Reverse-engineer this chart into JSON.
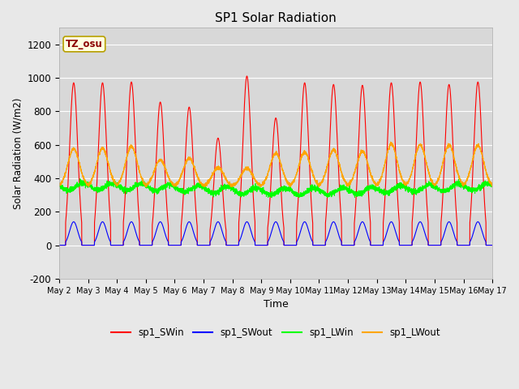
{
  "title": "SP1 Solar Radiation",
  "xlabel": "Time",
  "ylabel": "Solar Radiation (W/m2)",
  "ylim": [
    -200,
    1300
  ],
  "yticks": [
    -200,
    0,
    200,
    400,
    600,
    800,
    1000,
    1200
  ],
  "fig_bg_color": "#e8e8e8",
  "plot_bg_color": "#d8d8d8",
  "tz_label": "TZ_osu",
  "legend": [
    "sp1_SWin",
    "sp1_SWout",
    "sp1_LWin",
    "sp1_LWout"
  ],
  "line_colors": [
    "red",
    "blue",
    "lime",
    "orange"
  ],
  "days": 15,
  "start_day": 2,
  "points_per_day": 288,
  "day_peaks_swIn": [
    970,
    970,
    975,
    855,
    825,
    640,
    1010,
    760,
    970,
    960,
    955,
    970,
    975,
    960,
    975
  ],
  "day_peaks_lwOut": [
    575,
    580,
    590,
    510,
    520,
    465,
    460,
    550,
    555,
    570,
    560,
    605,
    600,
    600,
    595
  ]
}
